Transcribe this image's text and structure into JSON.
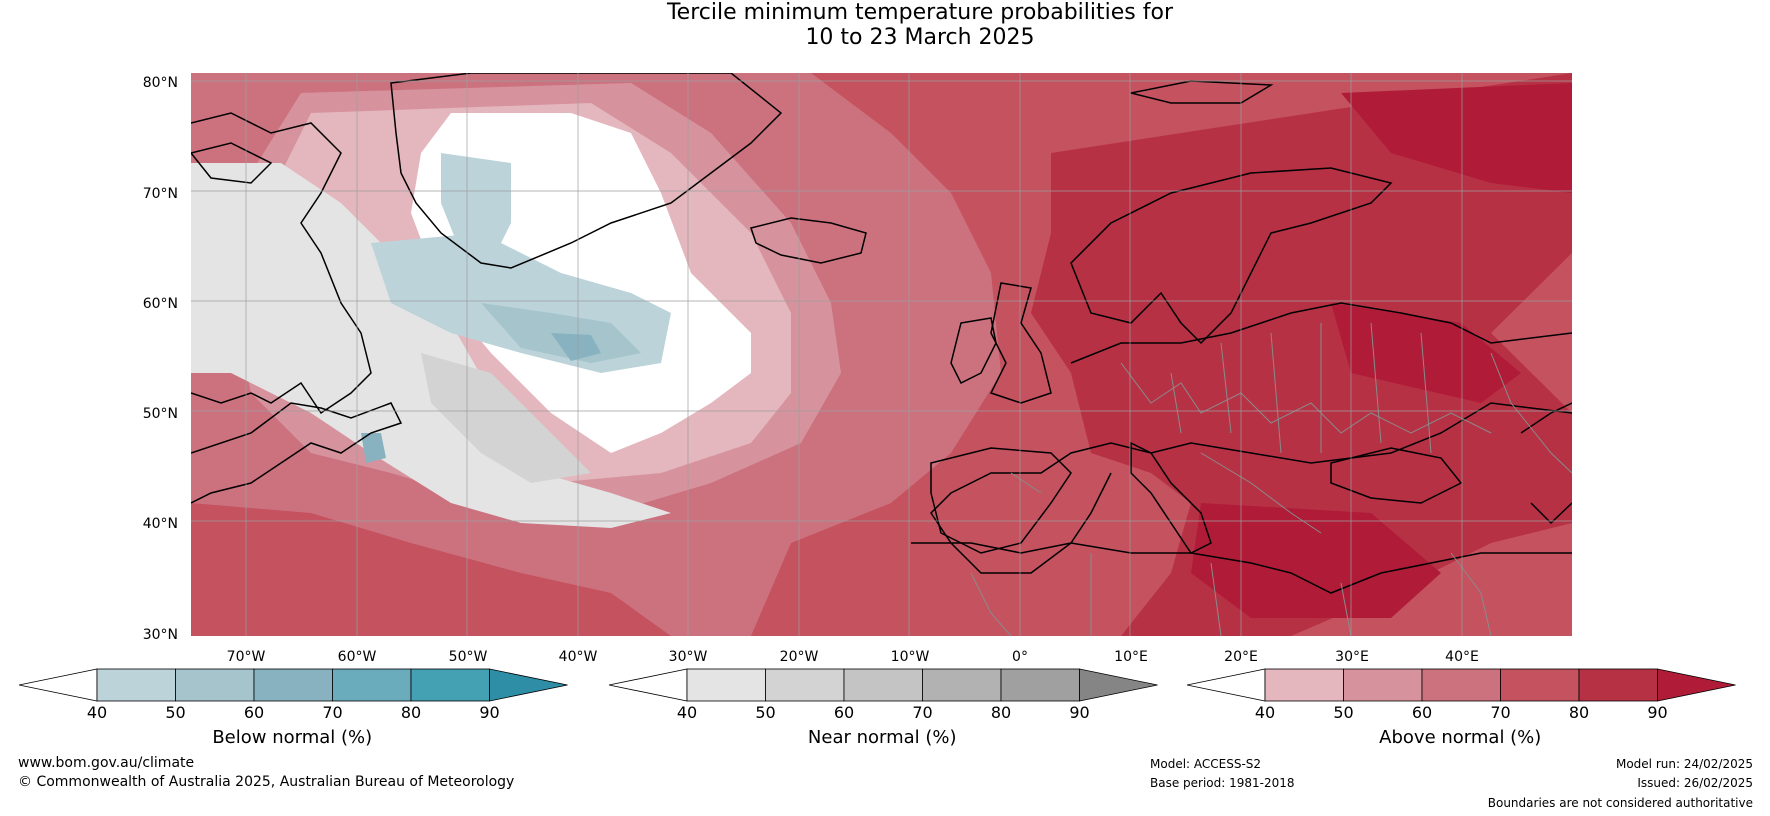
{
  "title": {
    "line1": "Tercile minimum temperature probabilities for",
    "line2": "10 to 23 March 2025"
  },
  "map": {
    "lat_labels": [
      "80°N",
      "70°N",
      "60°N",
      "50°N",
      "40°N",
      "30°N"
    ],
    "lon_labels": [
      "70°W",
      "60°W",
      "50°W",
      "40°W",
      "30°W",
      "20°W",
      "10°W",
      "0°",
      "10°E",
      "20°E",
      "30°E",
      "40°E"
    ],
    "extent": {
      "lon_min": -75,
      "lon_max": 50,
      "lat_min": 30,
      "lat_max": 81
    }
  },
  "colorbars": [
    {
      "title": "Below normal (%)",
      "ticks": [
        "40",
        "50",
        "60",
        "70",
        "80",
        "90"
      ],
      "colors": [
        "#ffffff",
        "#bcd3da",
        "#a5c4cc",
        "#88b2c0",
        "#6aabbc",
        "#44a1b4",
        "#2e8ea6"
      ]
    },
    {
      "title": "Near normal (%)",
      "ticks": [
        "40",
        "50",
        "60",
        "70",
        "80",
        "90"
      ],
      "colors": [
        "#ffffff",
        "#e4e4e4",
        "#d3d3d3",
        "#c4c4c4",
        "#b2b2b2",
        "#a0a0a0",
        "#858585"
      ]
    },
    {
      "title": "Above normal (%)",
      "ticks": [
        "40",
        "50",
        "60",
        "70",
        "80",
        "90"
      ],
      "colors": [
        "#ffffff",
        "#e4b6bd",
        "#d6939d",
        "#cc727e",
        "#c4525f",
        "#b73145",
        "#b01b38"
      ]
    }
  ],
  "footer": {
    "website": "www.bom.gov.au/climate",
    "copyright": "© Commonwealth of Australia 2025, Australian Bureau of Meteorology",
    "model": "Model: ACCESS-S2",
    "base_period": "Base period: 1981-2018",
    "model_run": "Model run: 24/02/2025",
    "issued": "Issued: 26/02/2025",
    "disclaimer": "Boundaries are not considered authoritative"
  }
}
